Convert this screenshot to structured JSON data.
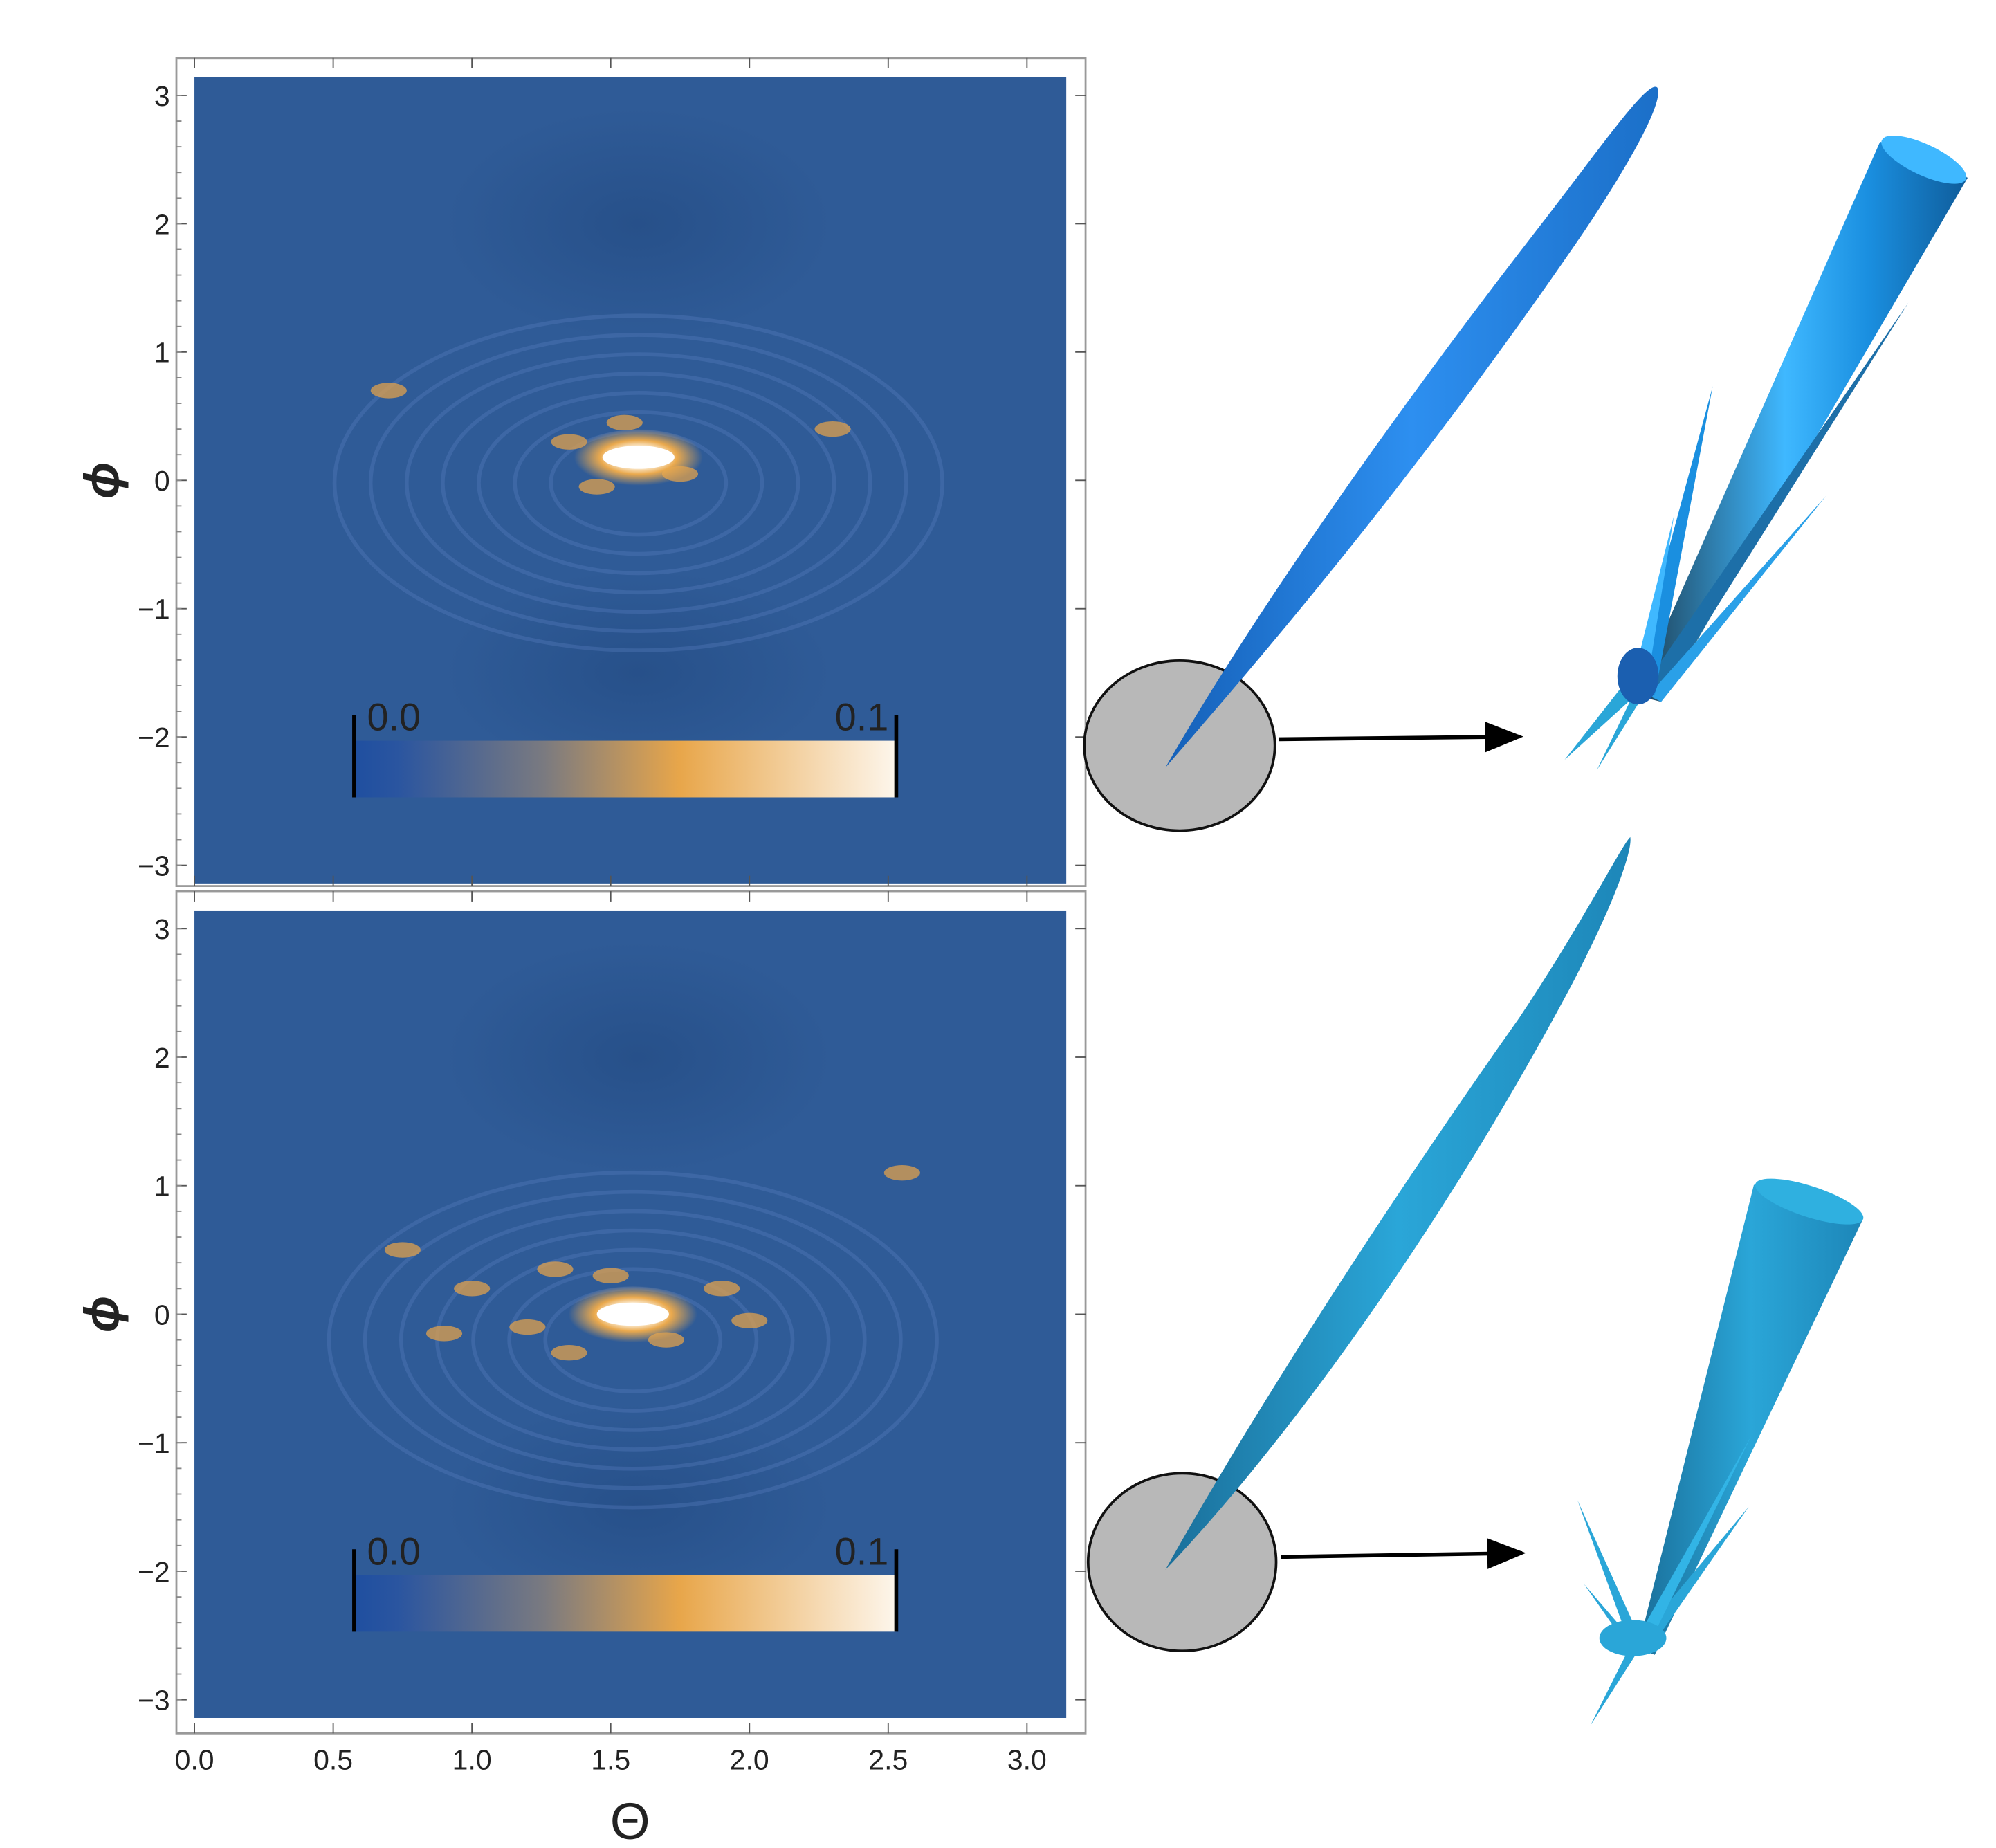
{
  "chart_data": [
    {
      "type": "heatmap",
      "panel": "top",
      "xlabel": "",
      "ylabel": "ϕ",
      "xlim": [
        0,
        3.1416
      ],
      "ylim": [
        -3.1416,
        3.1416
      ],
      "yticks": [
        "3",
        "2",
        "1",
        "0",
        "−1",
        "−2",
        "−3"
      ],
      "ytick_values": [
        3,
        2,
        1,
        0,
        -1,
        -2,
        -3
      ],
      "peak": {
        "x": 1.6,
        "y": 0.18
      },
      "colorbar": {
        "min_label": "0.0",
        "max_label": "0.1",
        "range": [
          0,
          0.1
        ],
        "colors": [
          "#1f4fa0",
          "#7a7a80",
          "#e8a64a",
          "#fdf6ec"
        ]
      },
      "background_color": "#2f5b97"
    },
    {
      "type": "heatmap",
      "panel": "bottom",
      "xlabel": "Θ",
      "ylabel": "ϕ",
      "xlim": [
        0,
        3.1416
      ],
      "ylim": [
        -3.1416,
        3.1416
      ],
      "xticks": [
        "0.0",
        "0.5",
        "1.0",
        "1.5",
        "2.0",
        "2.5",
        "3.0"
      ],
      "xtick_values": [
        0,
        0.5,
        1,
        1.5,
        2,
        2.5,
        3
      ],
      "yticks": [
        "3",
        "2",
        "1",
        "0",
        "−1",
        "−2",
        "−3"
      ],
      "ytick_values": [
        3,
        2,
        1,
        0,
        -1,
        -2,
        -3
      ],
      "peak": {
        "x": 1.58,
        "y": 0.0
      },
      "colorbar": {
        "min_label": "0.0",
        "max_label": "0.1",
        "range": [
          0,
          0.1
        ],
        "colors": [
          "#1f4fa0",
          "#7a7a80",
          "#e8a64a",
          "#fdf6ec"
        ]
      },
      "background_color": "#2f5b97"
    }
  ],
  "colors": {
    "beam_blue": "#1e7fd6",
    "beam_cyan": "#2aa6d8",
    "zoom_circle": "#b8b8b8"
  }
}
